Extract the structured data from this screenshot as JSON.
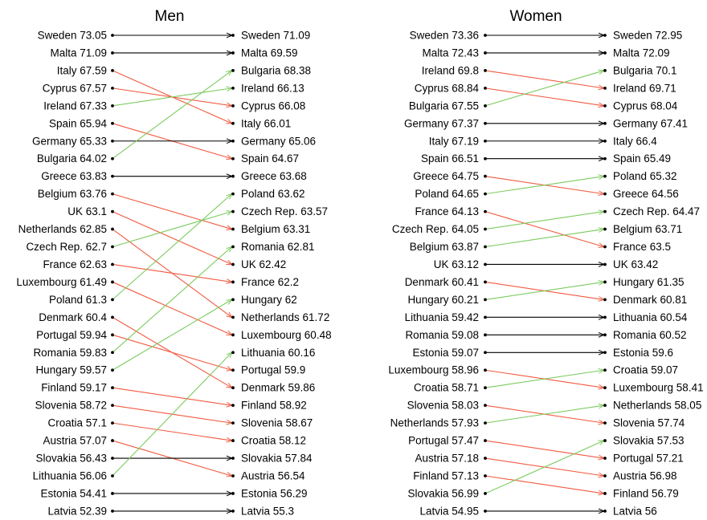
{
  "colors": {
    "up": "#7ccb5f",
    "down": "#f15a40",
    "same": "#000000"
  },
  "chart_data": [
    {
      "type": "slope",
      "title": "Men",
      "left": [
        {
          "name": "Sweden",
          "value": 73.05
        },
        {
          "name": "Malta",
          "value": 71.09
        },
        {
          "name": "Italy",
          "value": 67.59
        },
        {
          "name": "Cyprus",
          "value": 67.57
        },
        {
          "name": "Ireland",
          "value": 67.33
        },
        {
          "name": "Spain",
          "value": 65.94
        },
        {
          "name": "Germany",
          "value": 65.33
        },
        {
          "name": "Bulgaria",
          "value": 64.02
        },
        {
          "name": "Greece",
          "value": 63.83
        },
        {
          "name": "Belgium",
          "value": 63.76
        },
        {
          "name": "UK",
          "value": 63.1
        },
        {
          "name": "Netherlands",
          "value": 62.85
        },
        {
          "name": "Czech Rep.",
          "value": 62.7
        },
        {
          "name": "France",
          "value": 62.63
        },
        {
          "name": "Luxembourg",
          "value": 61.49
        },
        {
          "name": "Poland",
          "value": 61.3
        },
        {
          "name": "Denmark",
          "value": 60.4
        },
        {
          "name": "Portugal",
          "value": 59.94
        },
        {
          "name": "Romania",
          "value": 59.83
        },
        {
          "name": "Hungary",
          "value": 59.57
        },
        {
          "name": "Finland",
          "value": 59.17
        },
        {
          "name": "Slovenia",
          "value": 58.72
        },
        {
          "name": "Croatia",
          "value": 57.1
        },
        {
          "name": "Austria",
          "value": 57.07
        },
        {
          "name": "Slovakia",
          "value": 56.43
        },
        {
          "name": "Lithuania",
          "value": 56.06
        },
        {
          "name": "Estonia",
          "value": 54.41
        },
        {
          "name": "Latvia",
          "value": 52.39
        }
      ],
      "right": [
        {
          "name": "Sweden",
          "value": 71.09
        },
        {
          "name": "Malta",
          "value": 69.59
        },
        {
          "name": "Bulgaria",
          "value": 68.38
        },
        {
          "name": "Ireland",
          "value": 66.13
        },
        {
          "name": "Cyprus",
          "value": 66.08
        },
        {
          "name": "Italy",
          "value": 66.01
        },
        {
          "name": "Germany",
          "value": 65.06
        },
        {
          "name": "Spain",
          "value": 64.67
        },
        {
          "name": "Greece",
          "value": 63.68
        },
        {
          "name": "Poland",
          "value": 63.62
        },
        {
          "name": "Czech Rep.",
          "value": 63.57
        },
        {
          "name": "Belgium",
          "value": 63.31
        },
        {
          "name": "Romania",
          "value": 62.81
        },
        {
          "name": "UK",
          "value": 62.42
        },
        {
          "name": "France",
          "value": 62.2
        },
        {
          "name": "Hungary",
          "value": 62
        },
        {
          "name": "Netherlands",
          "value": 61.72
        },
        {
          "name": "Luxembourg",
          "value": 60.48
        },
        {
          "name": "Lithuania",
          "value": 60.16
        },
        {
          "name": "Portugal",
          "value": 59.9
        },
        {
          "name": "Denmark",
          "value": 59.86
        },
        {
          "name": "Finland",
          "value": 58.92
        },
        {
          "name": "Slovenia",
          "value": 58.67
        },
        {
          "name": "Croatia",
          "value": 58.12
        },
        {
          "name": "Slovakia",
          "value": 57.84
        },
        {
          "name": "Austria",
          "value": 56.54
        },
        {
          "name": "Estonia",
          "value": 56.29
        },
        {
          "name": "Latvia",
          "value": 55.3
        }
      ]
    },
    {
      "type": "slope",
      "title": "Women",
      "left": [
        {
          "name": "Sweden",
          "value": 73.36
        },
        {
          "name": "Malta",
          "value": 72.43
        },
        {
          "name": "Ireland",
          "value": 69.8
        },
        {
          "name": "Cyprus",
          "value": 68.84
        },
        {
          "name": "Bulgaria",
          "value": 67.55
        },
        {
          "name": "Germany",
          "value": 67.37
        },
        {
          "name": "Italy",
          "value": 67.19
        },
        {
          "name": "Spain",
          "value": 66.51
        },
        {
          "name": "Greece",
          "value": 64.75
        },
        {
          "name": "Poland",
          "value": 64.65
        },
        {
          "name": "France",
          "value": 64.13
        },
        {
          "name": "Czech Rep.",
          "value": 64.05
        },
        {
          "name": "Belgium",
          "value": 63.87
        },
        {
          "name": "UK",
          "value": 63.12
        },
        {
          "name": "Denmark",
          "value": 60.41
        },
        {
          "name": "Hungary",
          "value": 60.21
        },
        {
          "name": "Lithuania",
          "value": 59.42
        },
        {
          "name": "Romania",
          "value": 59.08
        },
        {
          "name": "Estonia",
          "value": 59.07
        },
        {
          "name": "Luxembourg",
          "value": 58.96
        },
        {
          "name": "Croatia",
          "value": 58.71
        },
        {
          "name": "Slovenia",
          "value": 58.03
        },
        {
          "name": "Netherlands",
          "value": 57.93
        },
        {
          "name": "Portugal",
          "value": 57.47
        },
        {
          "name": "Austria",
          "value": 57.18
        },
        {
          "name": "Finland",
          "value": 57.13
        },
        {
          "name": "Slovakia",
          "value": 56.99
        },
        {
          "name": "Latvia",
          "value": 54.95
        }
      ],
      "right": [
        {
          "name": "Sweden",
          "value": 72.95
        },
        {
          "name": "Malta",
          "value": 72.09
        },
        {
          "name": "Bulgaria",
          "value": 70.1
        },
        {
          "name": "Ireland",
          "value": 69.71
        },
        {
          "name": "Cyprus",
          "value": 68.04
        },
        {
          "name": "Germany",
          "value": 67.41
        },
        {
          "name": "Italy",
          "value": 66.4
        },
        {
          "name": "Spain",
          "value": 65.49
        },
        {
          "name": "Poland",
          "value": 65.32
        },
        {
          "name": "Greece",
          "value": 64.56
        },
        {
          "name": "Czech Rep.",
          "value": 64.47
        },
        {
          "name": "Belgium",
          "value": 63.71
        },
        {
          "name": "France",
          "value": 63.5
        },
        {
          "name": "UK",
          "value": 63.42
        },
        {
          "name": "Hungary",
          "value": 61.35
        },
        {
          "name": "Denmark",
          "value": 60.81
        },
        {
          "name": "Lithuania",
          "value": 60.54
        },
        {
          "name": "Romania",
          "value": 60.52
        },
        {
          "name": "Estonia",
          "value": 59.6
        },
        {
          "name": "Croatia",
          "value": 59.07
        },
        {
          "name": "Luxembourg",
          "value": 58.41
        },
        {
          "name": "Netherlands",
          "value": 58.05
        },
        {
          "name": "Slovenia",
          "value": 57.74
        },
        {
          "name": "Slovakia",
          "value": 57.53
        },
        {
          "name": "Portugal",
          "value": 57.21
        },
        {
          "name": "Austria",
          "value": 56.98
        },
        {
          "name": "Finland",
          "value": 56.79
        },
        {
          "name": "Latvia",
          "value": 56
        }
      ]
    }
  ]
}
